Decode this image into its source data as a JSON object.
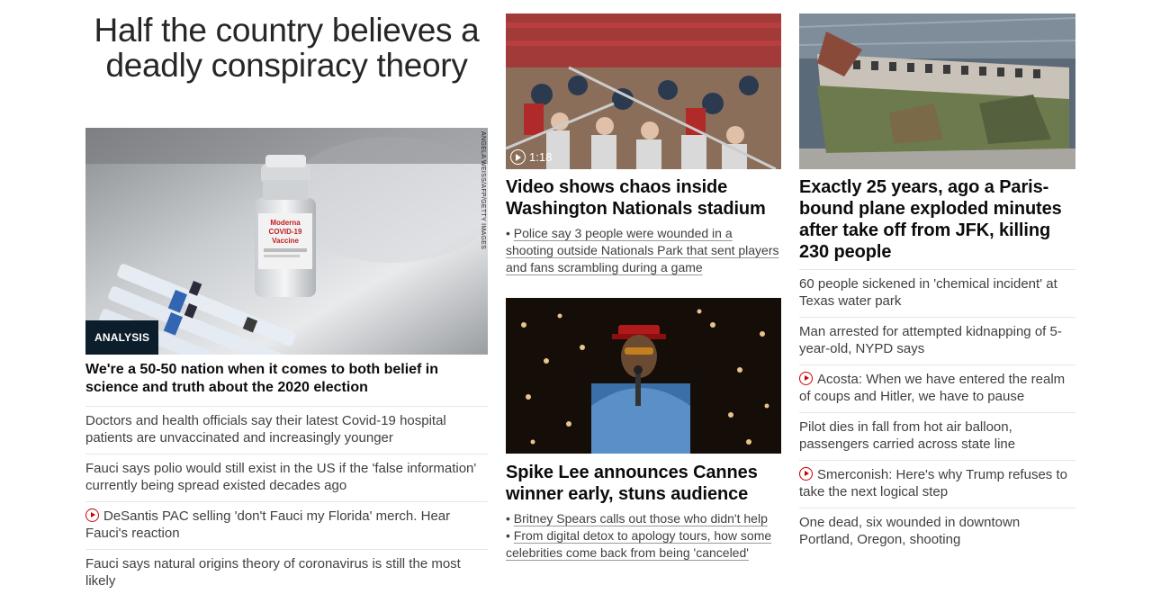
{
  "col1": {
    "headline": "Half the country believes a deadly conspiracy theory",
    "badge": "ANALYSIS",
    "credit": "ANGELA WEISS/AFP/GETTY IMAGES",
    "sub_headline": "We're a 50-50 nation when it comes to both belief in science and truth about the 2020 election",
    "items": [
      {
        "text": "Doctors and health officials say their latest Covid-19 hospital patients are unvaccinated and increasingly younger",
        "video": false
      },
      {
        "text": "Fauci says polio would still exist in the US if the 'false information' currently being spread existed decades ago",
        "video": false
      },
      {
        "text": "DeSantis PAC selling 'don't Fauci my Florida' merch. Hear Fauci's reaction",
        "video": true
      },
      {
        "text": "Fauci says natural origins theory of coronavirus is still the most likely",
        "video": false
      }
    ]
  },
  "col2": {
    "story1": {
      "duration": "1:18",
      "headline": "Video shows chaos inside Washington Nationals stadium",
      "bullets": [
        "Police say 3 people were wounded in a shooting outside Nationals Park that sent players and fans scrambling during a game"
      ]
    },
    "story2": {
      "headline": "Spike Lee announces Cannes winner early, stuns audience",
      "bullets": [
        "Britney Spears calls out those who didn't help",
        "From digital detox to apology tours, how some celebrities come back from being 'canceled'"
      ]
    }
  },
  "col3": {
    "headline": "Exactly 25 years, ago a Paris-bound plane exploded minutes after take off from JFK, killing 230 people",
    "items": [
      {
        "text": "60 people sickened in 'chemical incident' at Texas water park",
        "video": false
      },
      {
        "text": "Man arrested for attempted kidnapping of 5-year-old, NYPD says",
        "video": false
      },
      {
        "text": "Acosta: When we have entered the realm of coups and Hitler, we have to pause",
        "video": true
      },
      {
        "text": "Pilot dies in fall from hot air balloon, passengers carried across state line",
        "video": false
      },
      {
        "text": "Smerconish: Here's why Trump refuses to take the next logical step",
        "video": true
      },
      {
        "text": "One dead, six wounded in downtown Portland, Oregon, shooting",
        "video": false
      }
    ]
  },
  "colors": {
    "video_icon": "#cc0000",
    "badge_bg": "#0c1e2b"
  }
}
